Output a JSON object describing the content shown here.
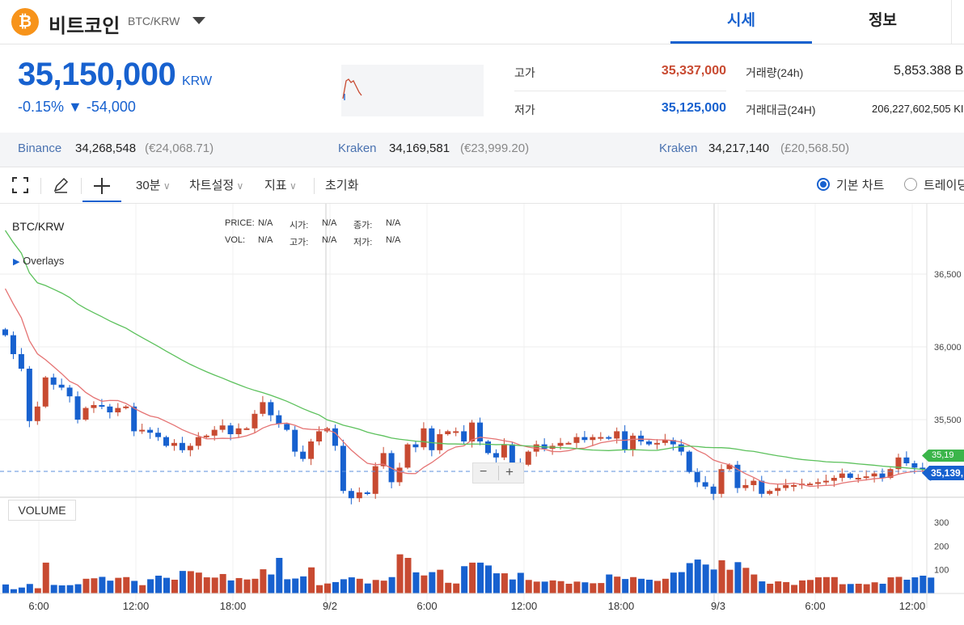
{
  "header": {
    "coin_symbol": "₿",
    "coin_name": "비트코인",
    "pair": "BTC/KRW",
    "tabs": [
      {
        "label": "시세",
        "active": true
      },
      {
        "label": "정보",
        "active": false
      }
    ]
  },
  "ticker": {
    "price": "35,150,000",
    "unit": "KRW",
    "change": "-0.15% ▼ -54,000",
    "high_label": "고가",
    "high_value": "35,337,000",
    "low_label": "저가",
    "low_value": "35,125,000",
    "volume_label": "거래량(24h)",
    "volume_value": "5,853.388 B",
    "amount_label": "거래대금(24H)",
    "amount_value": "206,227,602,505 KI",
    "colors": {
      "up": "#c84a31",
      "down": "#1761cf"
    }
  },
  "exchanges": [
    {
      "name": "Binance",
      "price": "34,268,548",
      "foreign": "(€24,068.71)"
    },
    {
      "name": "Kraken",
      "price": "34,169,581",
      "foreign": "(€23,999.20)"
    },
    {
      "name": "Kraken",
      "price": "34,217,140",
      "foreign": "(£20,568.50)"
    }
  ],
  "toolbar": {
    "fullscreen_icon": "fullscreen-icon",
    "draw_icon": "pencil-icon",
    "crosshair_icon": "crosshair-icon",
    "interval": "30분",
    "chart_settings": "차트설정",
    "indicators": "지표",
    "reset": "초기화",
    "basic_chart": "기본 차트",
    "trading_chart": "트레이딩"
  },
  "chart_legend": {
    "symbol": "BTC/KRW",
    "overlays": "Overlays",
    "price_label": "PRICE:",
    "price_val": "N/A",
    "open_label": "시가:",
    "open_val": "N/A",
    "close_label": "종가:",
    "close_val": "N/A",
    "vol_label": "VOL:",
    "vol_val": "N/A",
    "high_label": "고가:",
    "high_val": "N/A",
    "low_label": "저가:",
    "low_val": "N/A",
    "volume_box": "VOLUME",
    "current_price_tag": "35,139,",
    "upper_tag": "35,19",
    "zoom_out": "−",
    "zoom_in": "+"
  },
  "chart_data": {
    "type": "candlestick",
    "interval": "30m",
    "ylim": [
      34950000,
      36850000
    ],
    "yticks": [
      "36,500",
      "36,000",
      "35,500"
    ],
    "volume_ticks": [
      "300",
      "200",
      "100"
    ],
    "volume_ylim": [
      0,
      380
    ],
    "xticks": [
      "6:00",
      "12:00",
      "18:00",
      "9/2",
      "6:00",
      "12:00",
      "18:00",
      "9/3",
      "6:00",
      "12:00"
    ],
    "close": [
      36080,
      35950,
      35850,
      35490,
      35590,
      35790,
      35740,
      35720,
      35660,
      35500,
      35580,
      35600,
      35590,
      35550,
      35580,
      35590,
      35420,
      35430,
      35410,
      35380,
      35320,
      35340,
      35290,
      35320,
      35380,
      35390,
      35430,
      35460,
      35400,
      35440,
      35440,
      35540,
      35620,
      35530,
      35470,
      35430,
      35280,
      35230,
      35350,
      35420,
      35440,
      35320,
      35010,
      34960,
      35000,
      34990,
      35180,
      35270,
      35070,
      35170,
      35330,
      35310,
      35440,
      35290,
      35400,
      35420,
      35420,
      35350,
      35480,
      35350,
      35270,
      35240,
      35330,
      35200,
      35190,
      35280,
      35330,
      35300,
      35320,
      35340,
      35340,
      35380,
      35360,
      35380,
      35380,
      35370,
      35420,
      35290,
      35390,
      35350,
      35330,
      35340,
      35360,
      35330,
      35280,
      35140,
      35070,
      35040,
      34990,
      35160,
      35190,
      35030,
      35050,
      35080,
      34990,
      35010,
      35030,
      35050,
      35050,
      35060,
      35060,
      35070,
      35080,
      35100,
      35130,
      35100,
      35100,
      35110,
      35130,
      35100,
      35160,
      35240,
      35200,
      35170,
      35160,
      35090
    ],
    "volume": [
      38,
      18,
      25,
      40,
      22,
      130,
      36,
      34,
      35,
      39,
      62,
      64,
      70,
      54,
      66,
      69,
      53,
      35,
      60,
      75,
      66,
      58,
      95,
      94,
      88,
      68,
      67,
      82,
      55,
      65,
      59,
      62,
      102,
      80,
      150,
      60,
      63,
      72,
      110,
      35,
      42,
      48,
      60,
      68,
      62,
      42,
      57,
      54,
      69,
      165,
      150,
      89,
      76,
      90,
      100,
      45,
      42,
      115,
      130,
      130,
      118,
      85,
      85,
      59,
      87,
      57,
      50,
      50,
      55,
      52,
      41,
      50,
      47,
      43,
      44,
      80,
      71,
      61,
      69,
      62,
      58,
      53,
      62,
      88,
      90,
      128,
      143,
      122,
      101,
      140,
      100,
      132,
      108,
      80,
      51,
      41,
      51,
      48,
      36,
      55,
      57,
      68,
      69,
      69,
      39,
      40,
      41,
      39,
      47,
      41,
      68,
      70,
      58,
      68,
      75,
      67
    ],
    "ma_fast": "35,480 to 35,110 declining (red)",
    "ma_slow": "36,850 to 35,135 declining (green)"
  }
}
